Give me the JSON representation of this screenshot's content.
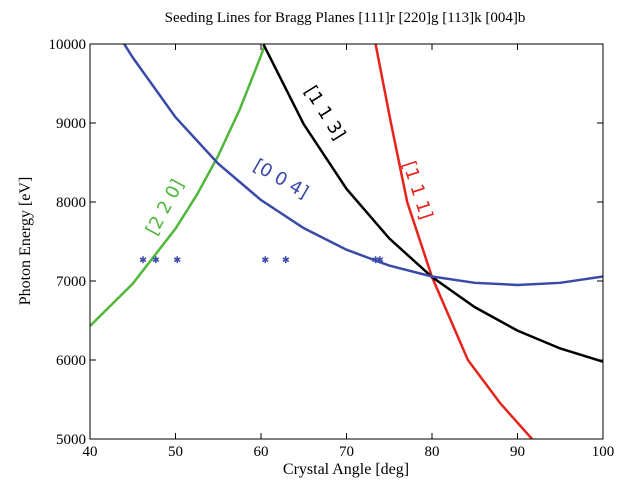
{
  "chart_data": {
    "type": "line",
    "title": "Seeding Lines for Bragg Planes [111]r [220]g [113]k [004]b",
    "x_label": "Crystal Angle [deg]",
    "y_label": "Photon Energy [eV]",
    "xlim": [
      40,
      100
    ],
    "ylim": [
      5000,
      10000
    ],
    "xticks": [
      40,
      50,
      60,
      70,
      80,
      90,
      100
    ],
    "yticks": [
      5000,
      6000,
      7000,
      8000,
      9000,
      10000
    ],
    "series": [
      {
        "name": "[1 1 1]",
        "color": "#e8231c",
        "x": [
          73.4,
          75.2,
          77.1,
          80,
          84.2,
          88,
          91.7
        ],
        "values": [
          10000,
          9000,
          8000,
          7050,
          6000,
          5450,
          5000
        ]
      },
      {
        "name": "[2 2 0]",
        "color": "#4fb83a",
        "x": [
          40,
          45,
          50,
          52.5,
          55,
          57.5,
          60,
          60.4
        ],
        "values": [
          6430,
          6966,
          7663,
          8091,
          8588,
          9168,
          9852,
          9974
        ]
      },
      {
        "name": "[1 1 3]",
        "color": "#000000",
        "x": [
          60.3,
          65,
          70,
          75,
          80,
          85,
          90,
          95,
          100
        ],
        "values": [
          9993,
          8984,
          8167,
          7539,
          7050,
          6669,
          6372,
          6146,
          5979
        ]
      },
      {
        "name": "[0 0 4]",
        "color": "#3a4aa8",
        "x": [
          44,
          45,
          50,
          55,
          60,
          65,
          70,
          75,
          80,
          85,
          90,
          95,
          100
        ],
        "values": [
          10000,
          9829,
          9073,
          8484,
          8025,
          7669,
          7396,
          7195,
          7057,
          6977,
          6950,
          6977,
          7057
        ]
      }
    ],
    "markers": {
      "color": "#3a4aa8",
      "x": [
        46.2,
        47.7,
        50.2,
        60.5,
        62.9,
        73.4,
        73.9
      ],
      "values": [
        7270,
        7270,
        7270,
        7270,
        7270,
        7270,
        7270
      ]
    }
  }
}
